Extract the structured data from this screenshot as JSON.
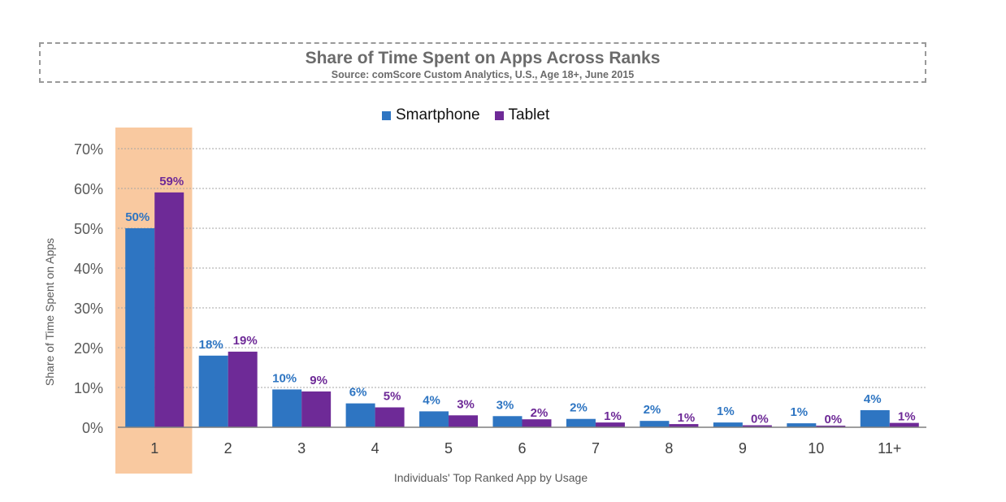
{
  "chart_data": {
    "type": "bar",
    "title": "Share of Time Spent on Apps Across Ranks",
    "subtitle": "Source: comScore Custom Analytics, U.S., Age 18+, June 2015",
    "xlabel": "Individuals' Top Ranked App by Usage",
    "ylabel": "Share of Time Spent on Apps",
    "categories": [
      "1",
      "2",
      "3",
      "4",
      "5",
      "6",
      "7",
      "8",
      "9",
      "10",
      "11+"
    ],
    "series": [
      {
        "name": "Smartphone",
        "color": "#2e75c2",
        "values": [
          50,
          18,
          10,
          6,
          4,
          3,
          2,
          2,
          1,
          1,
          4
        ],
        "plot_values": [
          50,
          18,
          9.5,
          6,
          4,
          2.8,
          2.1,
          1.6,
          1.2,
          1.0,
          4.3
        ],
        "labels": [
          "50%",
          "18%",
          "10%",
          "6%",
          "4%",
          "3%",
          "2%",
          "2%",
          "1%",
          "1%",
          "4%"
        ]
      },
      {
        "name": "Tablet",
        "color": "#6e2a97",
        "values": [
          59,
          19,
          9,
          5,
          3,
          2,
          1,
          1,
          0,
          0,
          1
        ],
        "plot_values": [
          59,
          19,
          9,
          5,
          3,
          2,
          1.2,
          0.8,
          0.5,
          0.4,
          1.1
        ],
        "labels": [
          "59%",
          "19%",
          "9%",
          "5%",
          "3%",
          "2%",
          "1%",
          "1%",
          "0%",
          "0%",
          "1%"
        ]
      }
    ],
    "ylim": [
      0,
      70
    ],
    "yticks": [
      0,
      10,
      20,
      30,
      40,
      50,
      60,
      70
    ],
    "ytick_labels": [
      "0%",
      "10%",
      "20%",
      "30%",
      "40%",
      "50%",
      "60%",
      "70%"
    ],
    "highlight_category": "1",
    "highlight_color": "#f9c9a0",
    "grid": "horizontal dotted",
    "legend_position": "top-center"
  }
}
